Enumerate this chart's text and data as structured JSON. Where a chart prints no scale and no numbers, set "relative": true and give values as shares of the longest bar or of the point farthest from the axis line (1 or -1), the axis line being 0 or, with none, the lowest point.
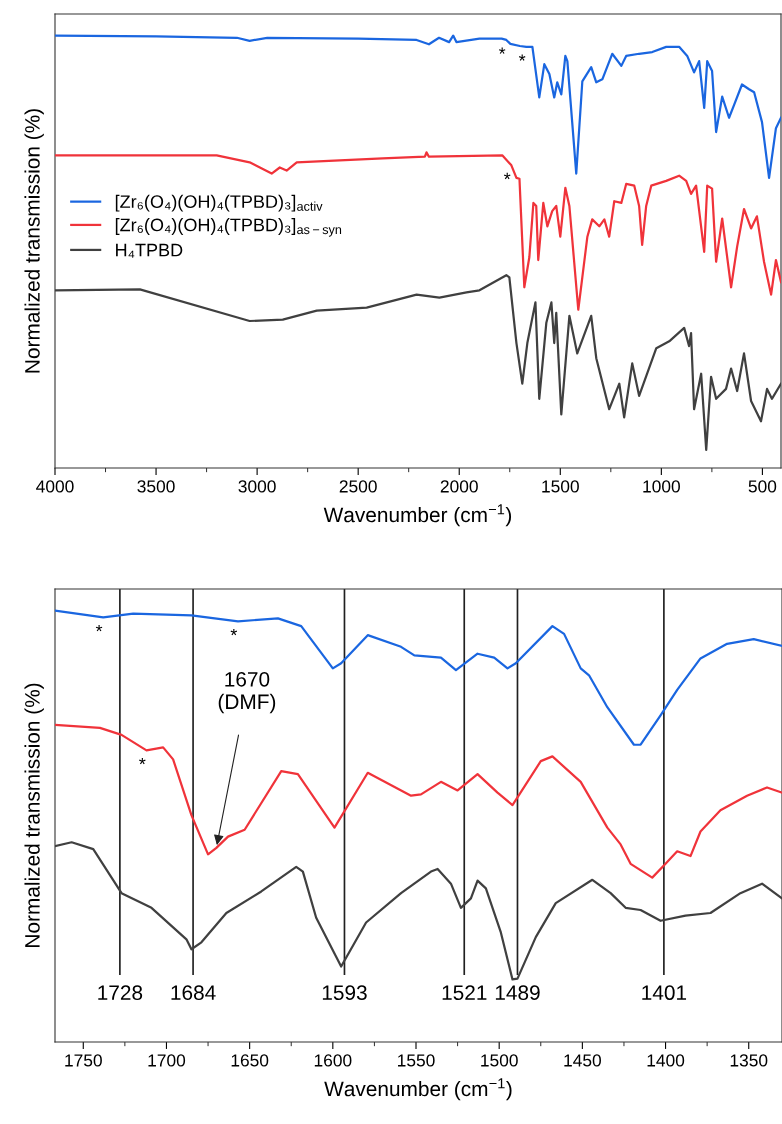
{
  "chart_data": [
    {
      "type": "line",
      "relative": true,
      "xlabel": "Wavenumber (cm$^{−1}$)",
      "ylabel": "Normalized transmission (%)",
      "xlim": [
        4000,
        408
      ],
      "xticks": [
        4000,
        3500,
        3000,
        2500,
        2000,
        1500,
        1000,
        500
      ],
      "legend": "center left",
      "grid": false,
      "series": [
        {
          "name": "[Zr₆(O₄)(OH)₄(TPBD)₃]$_{activ}$",
          "color": "#1a66e0",
          "x": [
            4000,
            3500,
            3100,
            3037,
            2950,
            2500,
            2211,
            2150,
            2100,
            2050,
            2030,
            2014,
            1900,
            1790,
            1767,
            1747,
            1700,
            1668,
            1638,
            1604,
            1579,
            1554,
            1530,
            1515,
            1495,
            1475,
            1465,
            1421,
            1391,
            1347,
            1322,
            1292,
            1243,
            1198,
            1174,
            1110,
            1045,
            976,
            912,
            872,
            838,
            813,
            788,
            773,
            749,
            729,
            699,
            665,
            640,
            601,
            566,
            541,
            502,
            467,
            433,
            408
          ],
          "values": [
            1.0,
            0.998,
            0.995,
            0.988,
            0.995,
            0.993,
            0.99,
            0.98,
            0.995,
            0.985,
            1.0,
            0.985,
            0.993,
            0.993,
            0.99,
            0.981,
            0.976,
            0.974,
            0.974,
            0.857,
            0.934,
            0.911,
            0.857,
            0.892,
            0.864,
            0.953,
            0.941,
            0.681,
            0.894,
            0.927,
            0.892,
            0.899,
            0.958,
            0.93,
            0.953,
            0.958,
            0.962,
            0.974,
            0.974,
            0.953,
            0.915,
            0.941,
            0.833,
            0.941,
            0.918,
            0.777,
            0.859,
            0.81,
            0.84,
            0.887,
            0.876,
            0.869,
            0.8,
            0.671,
            0.786,
            0.81
          ]
        },
        {
          "name": "[Zr₆(O₄)(OH)₄(TPBD)₃]$_{as−syn}$",
          "color": "#f0333a",
          "x": [
            4000,
            3200,
            3037,
            2928,
            2888,
            2854,
            2804,
            2379,
            2170,
            2162,
            2150,
            1786,
            1742,
            1717,
            1702,
            1678,
            1653,
            1633,
            1619,
            1609,
            1584,
            1564,
            1540,
            1520,
            1500,
            1475,
            1455,
            1411,
            1391,
            1366,
            1342,
            1307,
            1282,
            1258,
            1233,
            1198,
            1174,
            1134,
            1110,
            1095,
            1075,
            1050,
            976,
            912,
            877,
            853,
            828,
            788,
            773,
            749,
            729,
            699,
            655,
            625,
            591,
            556,
            527,
            492,
            457,
            433,
            408
          ],
          "values": [
            0.723,
            0.723,
            0.707,
            0.681,
            0.695,
            0.688,
            0.707,
            0.716,
            0.72,
            0.73,
            0.72,
            0.723,
            0.7,
            0.671,
            0.669,
            0.418,
            0.488,
            0.613,
            0.606,
            0.481,
            0.613,
            0.559,
            0.594,
            0.606,
            0.535,
            0.648,
            0.606,
            0.366,
            0.441,
            0.535,
            0.575,
            0.559,
            0.575,
            0.535,
            0.617,
            0.613,
            0.657,
            0.653,
            0.606,
            0.516,
            0.606,
            0.653,
            0.664,
            0.676,
            0.664,
            0.634,
            0.653,
            0.5,
            0.653,
            0.646,
            0.477,
            0.577,
            0.418,
            0.512,
            0.599,
            0.554,
            0.582,
            0.477,
            0.401,
            0.481,
            0.43
          ]
        },
        {
          "name": "H₄TPBD",
          "color": "#404040",
          "x": [
            4000,
            3580,
            3037,
            2873,
            2705,
            2458,
            2211,
            2098,
            1964,
            1900,
            1767,
            1752,
            1717,
            1688,
            1663,
            1623,
            1604,
            1569,
            1544,
            1530,
            1520,
            1495,
            1455,
            1416,
            1347,
            1322,
            1258,
            1208,
            1184,
            1144,
            1110,
            1025,
            961,
            887,
            863,
            853,
            838,
            803,
            778,
            754,
            729,
            680,
            655,
            625,
            591,
            556,
            507,
            477,
            453,
            408
          ],
          "values": [
            0.411,
            0.413,
            0.34,
            0.343,
            0.364,
            0.371,
            0.401,
            0.394,
            0.406,
            0.411,
            0.446,
            0.441,
            0.289,
            0.195,
            0.289,
            0.383,
            0.16,
            0.336,
            0.383,
            0.289,
            0.359,
            0.124,
            0.352,
            0.265,
            0.352,
            0.254,
            0.136,
            0.195,
            0.117,
            0.242,
            0.167,
            0.277,
            0.293,
            0.324,
            0.282,
            0.312,
            0.136,
            0.218,
            0.042,
            0.211,
            0.16,
            0.183,
            0.23,
            0.178,
            0.265,
            0.155,
            0.108,
            0.183,
            0.16,
            0.195
          ]
        }
      ],
      "annotations": [
        {
          "text": "*",
          "x": 1767,
          "y": 0.99
        },
        {
          "text": "*",
          "x": 1668,
          "y": 0.974
        },
        {
          "text": "*",
          "x": 1742,
          "y": 0.7
        }
      ]
    },
    {
      "type": "line",
      "relative": true,
      "xlabel": "Wavenumber (cm$^{−1}$)",
      "ylabel": "Normalized transmission (%)",
      "xlim": [
        1767,
        1330
      ],
      "xticks": [
        1750,
        1700,
        1650,
        1600,
        1550,
        1500,
        1450,
        1400,
        1350
      ],
      "grid": false,
      "series": [
        {
          "color": "#1a66e0",
          "x": [
            1767,
            1738,
            1720,
            1685,
            1657,
            1633,
            1619,
            1600,
            1595,
            1579,
            1559,
            1551,
            1535,
            1526,
            1513,
            1503,
            1495,
            1490,
            1468,
            1461,
            1451,
            1446,
            1435,
            1419,
            1415,
            1403,
            1393,
            1379,
            1363,
            1347,
            1330
          ],
          "values": [
            1.0,
            0.984,
            0.993,
            0.989,
            0.975,
            0.982,
            0.964,
            0.866,
            0.878,
            0.943,
            0.916,
            0.896,
            0.891,
            0.862,
            0.9,
            0.891,
            0.866,
            0.878,
            0.964,
            0.946,
            0.866,
            0.85,
            0.776,
            0.689,
            0.689,
            0.757,
            0.816,
            0.889,
            0.923,
            0.934,
            0.918
          ]
        },
        {
          "color": "#f0333a",
          "x": [
            1767,
            1740,
            1727,
            1712,
            1702,
            1696,
            1685,
            1675,
            1670,
            1663,
            1653,
            1631,
            1621,
            1599,
            1579,
            1553,
            1547,
            1535,
            1525,
            1513,
            1501,
            1492,
            1475,
            1468,
            1451,
            1435,
            1427,
            1421,
            1408,
            1400,
            1393,
            1385,
            1379,
            1367,
            1351,
            1339,
            1330
          ],
          "values": [
            0.735,
            0.728,
            0.712,
            0.676,
            0.683,
            0.655,
            0.526,
            0.435,
            0.45,
            0.476,
            0.492,
            0.628,
            0.621,
            0.497,
            0.624,
            0.571,
            0.574,
            0.603,
            0.583,
            0.621,
            0.578,
            0.549,
            0.651,
            0.662,
            0.603,
            0.497,
            0.458,
            0.413,
            0.381,
            0.413,
            0.442,
            0.431,
            0.488,
            0.537,
            0.571,
            0.59,
            0.578
          ]
        },
        {
          "color": "#404040",
          "x": [
            1767,
            1757,
            1744,
            1727,
            1709,
            1688,
            1685,
            1679,
            1664,
            1643,
            1622,
            1618,
            1610,
            1595,
            1580,
            1559,
            1541,
            1537,
            1529,
            1523,
            1517,
            1513,
            1508,
            1499,
            1492,
            1489,
            1478,
            1466,
            1444,
            1433,
            1424,
            1415,
            1403,
            1388,
            1373,
            1355,
            1342,
            1330
          ],
          "values": [
            0.454,
            0.463,
            0.447,
            0.345,
            0.311,
            0.238,
            0.215,
            0.231,
            0.299,
            0.349,
            0.406,
            0.395,
            0.288,
            0.175,
            0.277,
            0.345,
            0.395,
            0.401,
            0.367,
            0.311,
            0.333,
            0.374,
            0.356,
            0.254,
            0.145,
            0.147,
            0.243,
            0.322,
            0.376,
            0.345,
            0.311,
            0.306,
            0.281,
            0.293,
            0.299,
            0.345,
            0.367,
            0.333
          ]
        }
      ],
      "ref_lines": [
        {
          "axis": "x",
          "value": 1728,
          "label": "1728",
          "color": "#202020"
        },
        {
          "axis": "x",
          "value": 1684,
          "label": "1684",
          "color": "#202020"
        },
        {
          "axis": "x",
          "value": 1593,
          "label": "1593",
          "color": "#202020"
        },
        {
          "axis": "x",
          "value": 1521,
          "label": "1521",
          "color": "#202020"
        },
        {
          "axis": "x",
          "value": 1489,
          "label": "1489",
          "color": "#202020"
        },
        {
          "axis": "x",
          "value": 1401,
          "label": "1401",
          "color": "#202020"
        }
      ],
      "annotations": [
        {
          "text": "*",
          "x": 1738,
          "y": 0.984
        },
        {
          "text": "*",
          "x": 1657,
          "y": 0.975
        },
        {
          "text": "*",
          "x": 1712,
          "y": 0.676
        },
        {
          "text": "1670\n(DMF)",
          "x": 1670,
          "y": 0.45
        }
      ]
    }
  ]
}
